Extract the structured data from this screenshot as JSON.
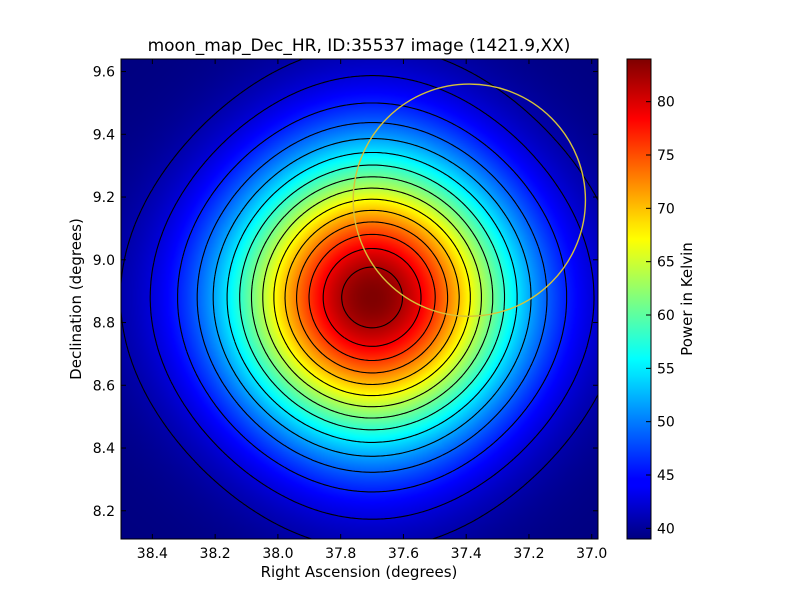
{
  "chart_data": {
    "type": "heatmap",
    "title": "moon_map_Dec_HR, ID:35537 image (1421.9,XX)",
    "xlabel": "Right Ascension (degrees)",
    "ylabel": "Declination (degrees)",
    "xlim": [
      38.5,
      36.98
    ],
    "ylim": [
      8.11,
      9.64
    ],
    "x_ticks": [
      {
        "value": 38.4,
        "label": "38.4"
      },
      {
        "value": 38.2,
        "label": "38.2"
      },
      {
        "value": 38.0,
        "label": "38.0"
      },
      {
        "value": 37.8,
        "label": "37.8"
      },
      {
        "value": 37.6,
        "label": "37.6"
      },
      {
        "value": 37.4,
        "label": "37.4"
      },
      {
        "value": 37.2,
        "label": "37.2"
      },
      {
        "value": 37.0,
        "label": "37.0"
      }
    ],
    "y_ticks": [
      {
        "value": 8.2,
        "label": "8.2"
      },
      {
        "value": 8.4,
        "label": "8.4"
      },
      {
        "value": 8.6,
        "label": "8.6"
      },
      {
        "value": 8.8,
        "label": "8.8"
      },
      {
        "value": 9.0,
        "label": "9.0"
      },
      {
        "value": 9.2,
        "label": "9.2"
      },
      {
        "value": 9.4,
        "label": "9.4"
      },
      {
        "value": 9.6,
        "label": "9.6"
      }
    ],
    "peak": {
      "ra": 37.7,
      "dec": 8.88,
      "value": 84
    },
    "background_value": 39,
    "colormap": "jet",
    "contour_levels": [
      41,
      43,
      46,
      49,
      52,
      55,
      58,
      61,
      64,
      67,
      70,
      73,
      76,
      79,
      82,
      84
    ],
    "contour_color": "#000000",
    "moon_circle": {
      "ra": 37.39,
      "dec": 9.19,
      "radius_deg": 0.37,
      "color": "#d6c23a"
    },
    "colorbar": {
      "label": "Power in Kelvin",
      "range": [
        39,
        84
      ],
      "ticks": [
        {
          "value": 40,
          "label": "40"
        },
        {
          "value": 45,
          "label": "45"
        },
        {
          "value": 50,
          "label": "50"
        },
        {
          "value": 55,
          "label": "55"
        },
        {
          "value": 60,
          "label": "60"
        },
        {
          "value": 65,
          "label": "65"
        },
        {
          "value": 70,
          "label": "70"
        },
        {
          "value": 75,
          "label": "75"
        },
        {
          "value": 80,
          "label": "80"
        }
      ]
    }
  }
}
